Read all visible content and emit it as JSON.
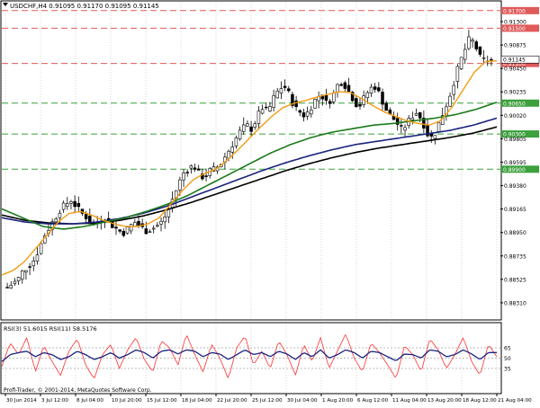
{
  "header": {
    "symbol_line": "USDCHF,H4  0.91095 0.91170 0.91095 0.91145",
    "dropdown_icon": "triangle-down-icon"
  },
  "colors": {
    "bull_candle": "#ffffff",
    "bear_candle": "#000000",
    "ma_fast": "#f39c12",
    "ma_medium": "#1a7a1a",
    "ma_slow": "#1a237e",
    "ma_slowest": "#000000",
    "level_red": "#e05a5a",
    "level_green": "#3ca03c",
    "rsi_fast": "#ff3030",
    "rsi_slow": "#1a237e"
  },
  "price_axis": {
    "ticks": [
      "0.91300",
      "0.90875",
      "0.90450",
      "0.90235",
      "0.90020",
      "0.89805",
      "0.89595",
      "0.89380",
      "0.89165",
      "0.88950",
      "0.88735",
      "0.88525",
      "0.88310"
    ],
    "current_price": "0.91145"
  },
  "levels": [
    {
      "price": 0.917,
      "label": "0.91700",
      "color": "red"
    },
    {
      "price": 0.915,
      "label": "0.91500",
      "color": "red"
    },
    {
      "price": 0.911,
      "label": "0.91100",
      "color": "red"
    },
    {
      "price": 0.9065,
      "label": "0.90650",
      "color": "green"
    },
    {
      "price": 0.903,
      "label": "0.90300",
      "color": "green"
    },
    {
      "price": 0.899,
      "label": "0.89900",
      "color": "green"
    }
  ],
  "time_axis": {
    "labels": [
      "30 Jun 2014",
      "3 Jul 12:00",
      "8 Jul 04:00",
      "10 Jul 20:00",
      "15 Jul 12:00",
      "18 Jul 04:00",
      "22 Jul 20:00",
      "25 Jul 12:00",
      "30 Jul 04:00",
      "1 Aug 20:00",
      "6 Aug 12:00",
      "11 Aug 04:00",
      "13 Aug 20:00",
      "18 Aug 12:00",
      "21 Aug 04:00"
    ]
  },
  "rsi": {
    "label": "RSI(3) 51.6015  RSI(11) 58.5176",
    "ticks": [
      "65",
      "50",
      "35"
    ],
    "copyright": "Profi-Trader, © 2001-2014, MetaQuotes Software Corp."
  },
  "chart_data": {
    "type": "candlestick",
    "symbol": "USDCHF",
    "timeframe": "H4",
    "ylim": [
      0.882,
      0.918
    ],
    "close_path": [
      0.8856,
      0.886,
      0.8865,
      0.8875,
      0.888,
      0.8887,
      0.89,
      0.8915,
      0.8925,
      0.8935,
      0.8945,
      0.895,
      0.8955,
      0.8947,
      0.894,
      0.8935,
      0.8925,
      0.893,
      0.8935,
      0.893,
      0.8925,
      0.892,
      0.8918,
      0.8925,
      0.893,
      0.8925,
      0.892,
      0.8922,
      0.8925,
      0.893,
      0.894,
      0.8955,
      0.897,
      0.8985,
      0.899,
      0.8995,
      0.8985,
      0.898,
      0.8988,
      0.899,
      0.8995,
      0.9005,
      0.9015,
      0.9025,
      0.9035,
      0.904,
      0.9035,
      0.905,
      0.906,
      0.9055,
      0.907,
      0.908,
      0.9085,
      0.9075,
      0.906,
      0.9055,
      0.905,
      0.906,
      0.907,
      0.9075,
      0.9065,
      0.907,
      0.9085,
      0.909,
      0.908,
      0.907,
      0.906,
      0.907,
      0.908,
      0.9085,
      0.9075,
      0.906,
      0.905,
      0.9045,
      0.9035,
      0.904,
      0.905,
      0.9055,
      0.9045,
      0.903,
      0.9025,
      0.904,
      0.9055,
      0.907,
      0.909,
      0.911,
      0.9125,
      0.914,
      0.913,
      0.9115,
      0.9113,
      0.9114
    ],
    "ma_fast": [
      0.887,
      0.8875,
      0.8885,
      0.89,
      0.8915,
      0.893,
      0.894,
      0.8942,
      0.8938,
      0.8932,
      0.8928,
      0.8925,
      0.8925,
      0.8928,
      0.8935,
      0.895,
      0.8965,
      0.8978,
      0.8985,
      0.899,
      0.9,
      0.9012,
      0.9025,
      0.9038,
      0.905,
      0.906,
      0.9065,
      0.9068,
      0.9072,
      0.9075,
      0.9078,
      0.9077,
      0.907,
      0.9062,
      0.9055,
      0.905,
      0.9045,
      0.9042,
      0.904,
      0.9045,
      0.906,
      0.908,
      0.91,
      0.9112,
      0.9113
    ],
    "ma_medium": [
      0.8945,
      0.8935,
      0.8925,
      0.8922,
      0.8925,
      0.893,
      0.8935,
      0.8942,
      0.895,
      0.896,
      0.8972,
      0.8984,
      0.8996,
      0.9008,
      0.9018,
      0.9026,
      0.9032,
      0.9036,
      0.904,
      0.9042,
      0.9045,
      0.9048,
      0.9052,
      0.9058,
      0.9066
    ],
    "ma_slow": [
      0.8935,
      0.893,
      0.8928,
      0.8928,
      0.893,
      0.8934,
      0.894,
      0.8948,
      0.8958,
      0.8968,
      0.8978,
      0.8988,
      0.8997,
      0.9005,
      0.9012,
      0.9018,
      0.9022,
      0.9026,
      0.903,
      0.9034,
      0.904,
      0.9048
    ],
    "ma_slowest": [
      0.8938,
      0.8932,
      0.8929,
      0.8928,
      0.8929,
      0.8932,
      0.8937,
      0.8944,
      0.8952,
      0.8961,
      0.897,
      0.8979,
      0.8988,
      0.8996,
      0.9003,
      0.9009,
      0.9014,
      0.9018,
      0.9022,
      0.9026,
      0.9031,
      0.9038
    ],
    "rsi3": [
      38,
      72,
      55,
      80,
      30,
      68,
      45,
      25,
      60,
      78,
      40,
      20,
      55,
      70,
      35,
      62,
      80,
      48,
      30,
      75,
      65,
      40,
      85,
      55,
      30,
      70,
      50,
      20,
      65,
      82,
      40,
      60,
      35,
      75,
      55,
      25,
      70,
      45,
      80,
      35,
      60,
      85,
      50,
      30,
      72,
      58,
      40,
      20,
      68,
      55,
      30,
      78,
      62,
      35,
      55,
      80,
      45,
      25,
      70,
      52
    ],
    "rsi11": [
      45,
      55,
      58,
      60,
      52,
      58,
      55,
      48,
      52,
      60,
      55,
      48,
      52,
      58,
      50,
      55,
      62,
      58,
      50,
      60,
      62,
      56,
      62,
      60,
      52,
      58,
      56,
      48,
      55,
      62,
      55,
      58,
      52,
      60,
      56,
      48,
      58,
      52,
      62,
      50,
      55,
      62,
      58,
      50,
      60,
      58,
      52,
      46,
      56,
      55,
      50,
      62,
      60,
      52,
      55,
      62,
      56,
      48,
      58,
      58
    ]
  }
}
